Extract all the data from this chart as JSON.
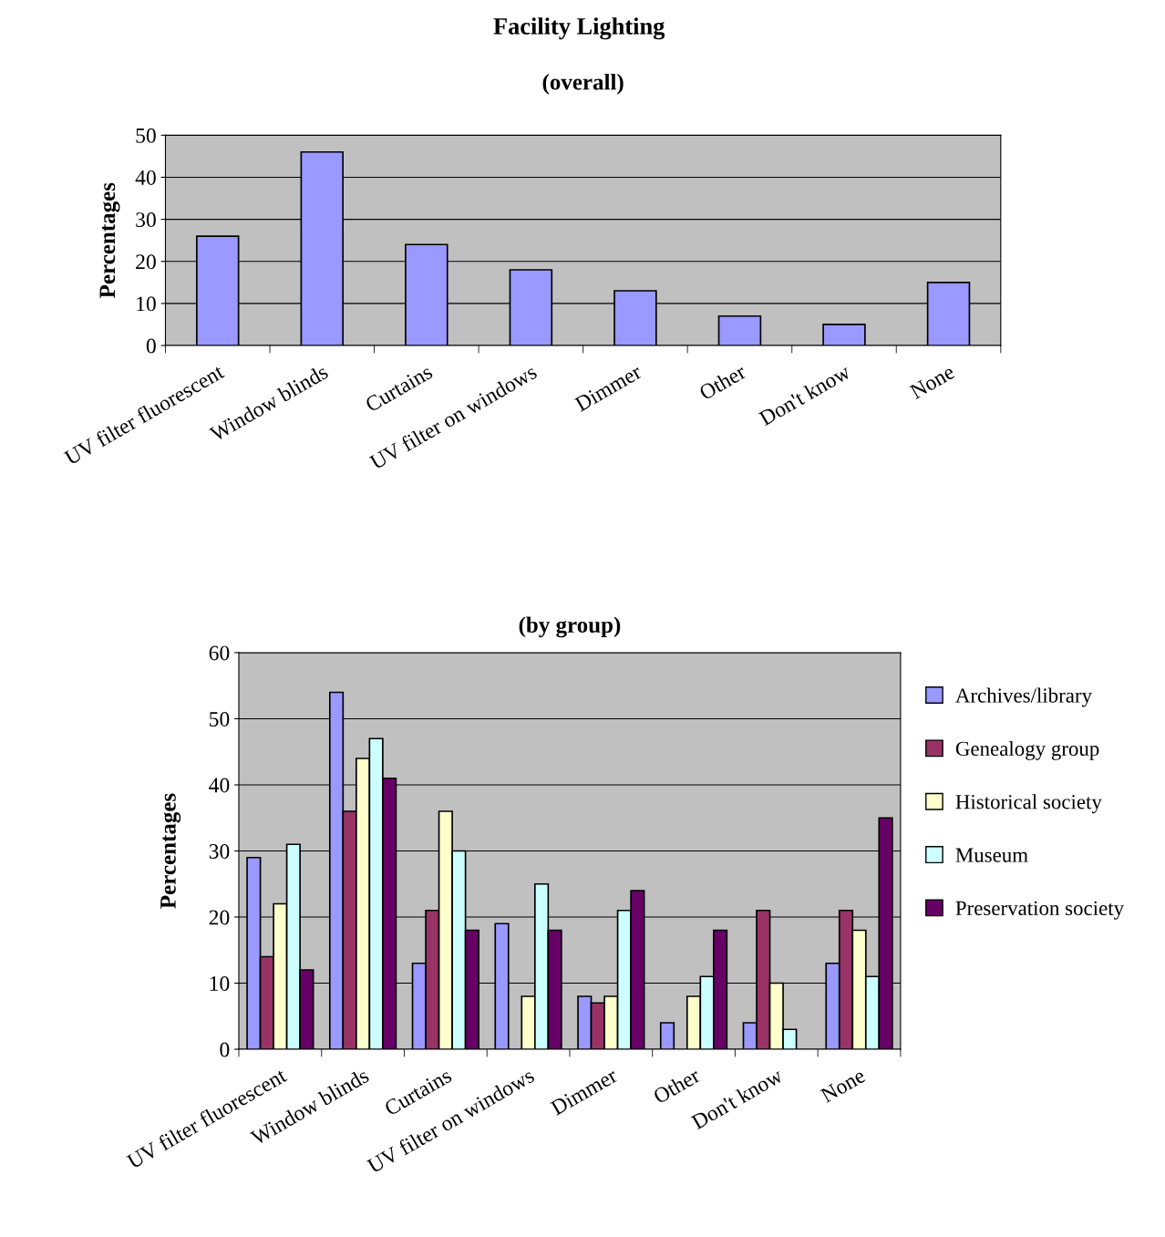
{
  "chart_data": [
    {
      "type": "bar",
      "title": "Facility Lighting",
      "subtitle": "(overall)",
      "ylabel": "Percentages",
      "categories": [
        "UV filter fluorescent",
        "Window blinds",
        "Curtains",
        "UV filter on windows",
        "Dimmer",
        "Other",
        "Don't know",
        "None"
      ],
      "values": [
        26,
        46,
        24,
        18,
        13,
        7,
        5,
        15
      ],
      "color": "#9999ff",
      "ylim": [
        0,
        50
      ],
      "yticks": [
        0,
        10,
        20,
        30,
        40,
        50
      ],
      "grid": "y",
      "legend": false
    },
    {
      "type": "bar",
      "title": "(by group)",
      "ylabel": "Percentages",
      "categories": [
        "UV filter fluorescent",
        "Window blinds",
        "Curtains",
        "UV filter on windows",
        "Dimmer",
        "Other",
        "Don't know",
        "None"
      ],
      "series": [
        {
          "name": "Archives/library",
          "color": "#9999ff",
          "values": [
            29,
            54,
            13,
            19,
            8,
            4,
            4,
            13
          ]
        },
        {
          "name": "Genealogy group",
          "color": "#993366",
          "values": [
            14,
            36,
            21,
            null,
            7,
            null,
            21,
            21
          ]
        },
        {
          "name": "Historical society",
          "color": "#ffffcc",
          "values": [
            22,
            44,
            36,
            8,
            8,
            8,
            10,
            18
          ]
        },
        {
          "name": "Museum",
          "color": "#ccffff",
          "values": [
            31,
            47,
            30,
            25,
            21,
            11,
            3,
            11
          ]
        },
        {
          "name": "Preservation society",
          "color": "#660066",
          "values": [
            12,
            41,
            18,
            18,
            24,
            18,
            null,
            35
          ]
        }
      ],
      "ylim": [
        0,
        60
      ],
      "yticks": [
        0,
        10,
        20,
        30,
        40,
        50,
        60
      ],
      "grid": "y",
      "legend": "right"
    }
  ]
}
